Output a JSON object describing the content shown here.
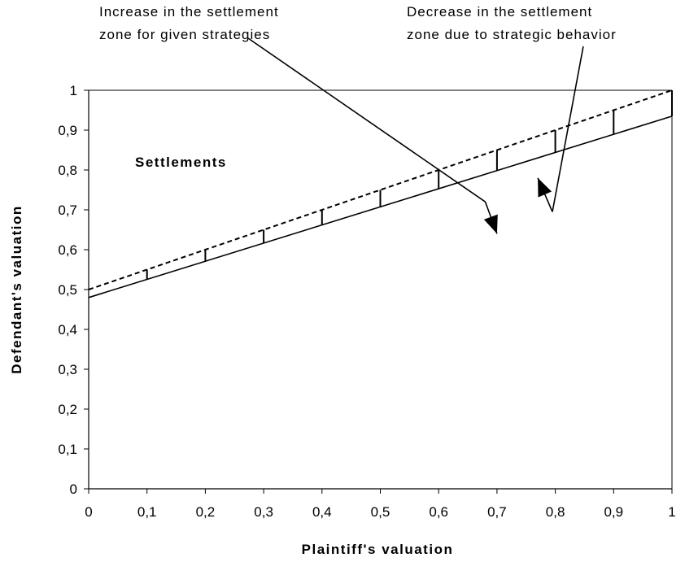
{
  "chart_data": {
    "type": "line",
    "xlabel": "Plaintiff's valuation",
    "ylabel": "Defendant's valuation",
    "xlim": [
      0,
      1
    ],
    "ylim": [
      0,
      1
    ],
    "x_ticks": [
      "0",
      "0,1",
      "0,2",
      "0,3",
      "0,4",
      "0,5",
      "0,6",
      "0,7",
      "0,8",
      "0,9",
      "1"
    ],
    "y_ticks": [
      "0",
      "0,1",
      "0,2",
      "0,3",
      "0,4",
      "0,5",
      "0,6",
      "0,7",
      "0,8",
      "0,9",
      "1"
    ],
    "grid": false,
    "series": [
      {
        "style": "solid",
        "x": [
          0,
          1
        ],
        "y": [
          0.48,
          0.935
        ]
      },
      {
        "style": "dotted",
        "x": [
          0,
          1
        ],
        "y": [
          0.5,
          1.0
        ]
      }
    ],
    "hatch_x": [
      0.1,
      0.2,
      0.3,
      0.4,
      0.5,
      0.6,
      0.7,
      0.8,
      0.9,
      1.0
    ],
    "region_label": {
      "text": "Settlements",
      "x": 0.08,
      "y": 0.82
    },
    "annotations": [
      {
        "lines": [
          "Increase in the settlement",
          "zone for given strategies"
        ],
        "arrow_from": [
          0.68,
          0.72
        ],
        "arrow_to": [
          0.7,
          0.64
        ]
      },
      {
        "lines": [
          "Decrease in the settlement",
          "zone due to strategic behavior"
        ],
        "arrow_from": [
          0.795,
          0.695
        ],
        "arrow_to": [
          0.77,
          0.78
        ]
      }
    ]
  }
}
